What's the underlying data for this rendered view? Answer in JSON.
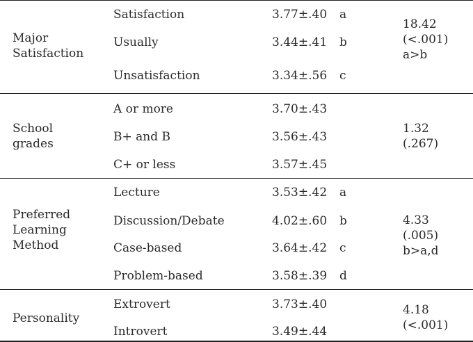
{
  "groups": [
    {
      "label": [
        "Major",
        "Satisfaction"
      ],
      "rows": [
        {
          "category": "Satisfaction",
          "value": "3.77±.40",
          "letter": "a"
        },
        {
          "category": "Usually",
          "value": "3.44±.41",
          "letter": "b"
        },
        {
          "category": "Unsatisfaction",
          "value": "3.34±.56",
          "letter": "c"
        }
      ],
      "stat": [
        "18.42",
        "(<.001)",
        "a>b"
      ]
    },
    {
      "label": [
        "School",
        "grades"
      ],
      "rows": [
        {
          "category": "A or more",
          "value": "3.70±.43",
          "letter": ""
        },
        {
          "category": "B+ and B",
          "value": "3.56±.43",
          "letter": ""
        },
        {
          "category": "C+ or less",
          "value": "3.57±.45",
          "letter": ""
        }
      ],
      "stat": [
        "1.32",
        "(.267)"
      ]
    },
    {
      "label": [
        "Preferred",
        "Learning",
        "Method"
      ],
      "rows": [
        {
          "category": "Lecture",
          "value": "3.53±.42",
          "letter": "a"
        },
        {
          "category": "Discussion/Debate",
          "value": "4.02±.60",
          "letter": "b"
        },
        {
          "category": "Case-based",
          "value": "3.64±.42",
          "letter": "c"
        },
        {
          "category": "Problem-based",
          "value": "3.58±.39",
          "letter": "d"
        }
      ],
      "stat": [
        "4.33",
        "(.005)",
        "b>a,d"
      ]
    },
    {
      "label": [
        "Personality"
      ],
      "rows": [
        {
          "category": "Extrovert",
          "value": "3.73±.40",
          "letter": ""
        },
        {
          "category": "Introvert",
          "value": "3.49±.44",
          "letter": ""
        }
      ],
      "stat": [
        "4.18",
        "(<.001)"
      ]
    }
  ]
}
